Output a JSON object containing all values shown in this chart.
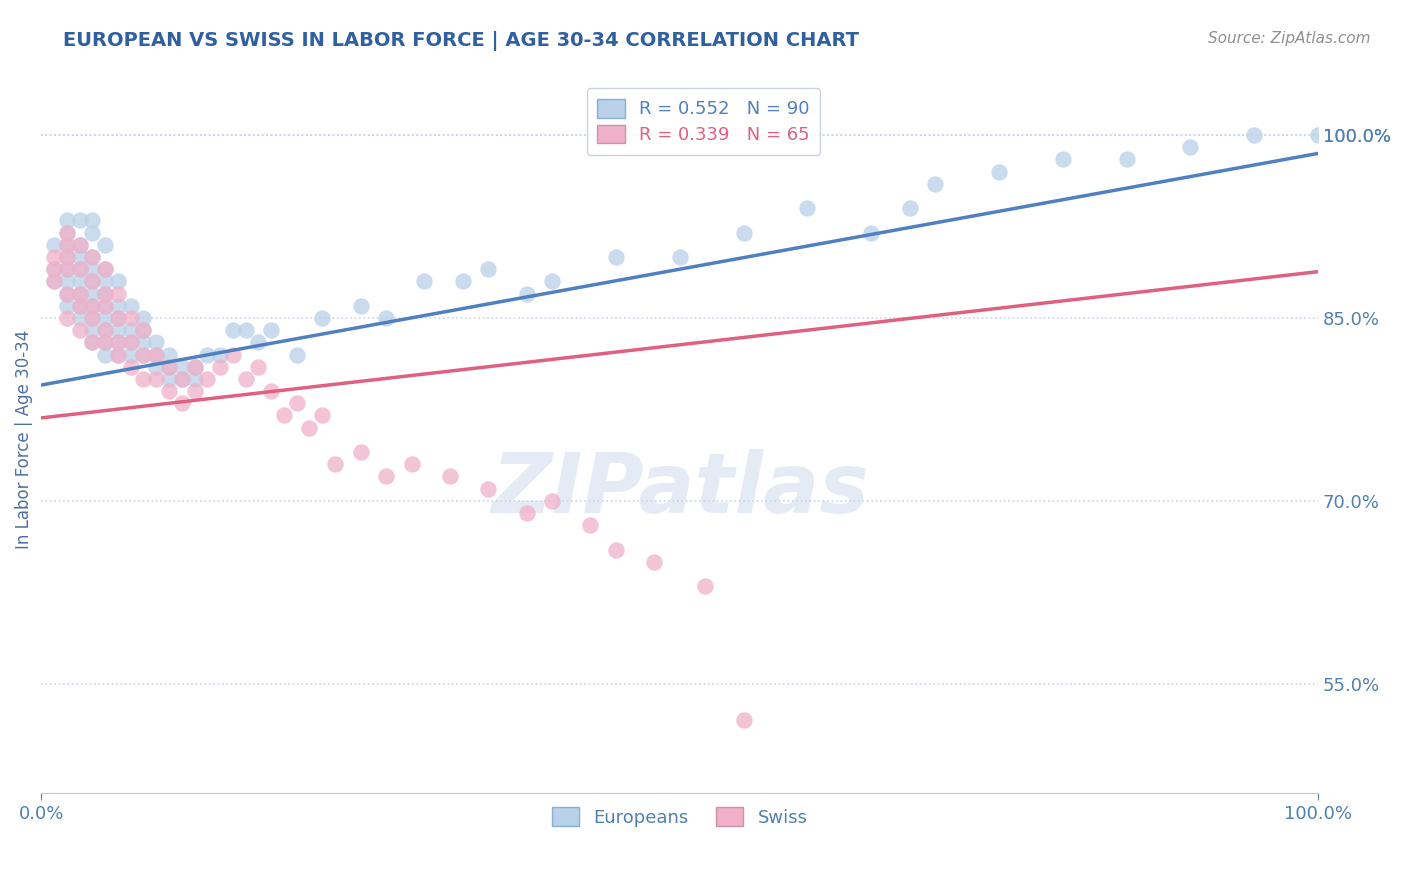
{
  "title": "EUROPEAN VS SWISS IN LABOR FORCE | AGE 30-34 CORRELATION CHART",
  "source": "Source: ZipAtlas.com",
  "xlabel": "",
  "ylabel": "In Labor Force | Age 30-34",
  "xlim": [
    0.0,
    1.0
  ],
  "ylim": [
    0.46,
    1.04
  ],
  "ytick_values": [
    0.55,
    0.7,
    0.85,
    1.0
  ],
  "ytick_labels": [
    "55.0%",
    "70.0%",
    "85.0%",
    "100.0%"
  ],
  "xtick_labels": [
    "0.0%",
    "100.0%"
  ],
  "watermark": "ZIPatlas",
  "legend_european": "Europeans",
  "legend_swiss": "Swiss",
  "european_color": "#b8d0e8",
  "swiss_color": "#f0b0c8",
  "european_line_color": "#5080c0",
  "swiss_line_color": "#e06080",
  "R_european": 0.552,
  "N_european": 90,
  "R_swiss": 0.339,
  "N_swiss": 65,
  "eu_intercept": 0.795,
  "eu_slope": 0.19,
  "sw_intercept": 0.768,
  "sw_slope": 0.12,
  "european_x": [
    0.01,
    0.01,
    0.01,
    0.02,
    0.02,
    0.02,
    0.02,
    0.02,
    0.02,
    0.02,
    0.02,
    0.03,
    0.03,
    0.03,
    0.03,
    0.03,
    0.03,
    0.03,
    0.03,
    0.04,
    0.04,
    0.04,
    0.04,
    0.04,
    0.04,
    0.04,
    0.04,
    0.04,
    0.04,
    0.05,
    0.05,
    0.05,
    0.05,
    0.05,
    0.05,
    0.05,
    0.05,
    0.05,
    0.06,
    0.06,
    0.06,
    0.06,
    0.06,
    0.06,
    0.07,
    0.07,
    0.07,
    0.07,
    0.08,
    0.08,
    0.08,
    0.08,
    0.09,
    0.09,
    0.09,
    0.1,
    0.1,
    0.1,
    0.11,
    0.11,
    0.12,
    0.12,
    0.13,
    0.14,
    0.15,
    0.16,
    0.17,
    0.18,
    0.2,
    0.22,
    0.25,
    0.27,
    0.3,
    0.33,
    0.35,
    0.38,
    0.4,
    0.45,
    0.5,
    0.55,
    0.6,
    0.65,
    0.68,
    0.7,
    0.75,
    0.8,
    0.85,
    0.9,
    0.95,
    1.0
  ],
  "european_y": [
    0.88,
    0.89,
    0.91,
    0.86,
    0.87,
    0.88,
    0.89,
    0.9,
    0.91,
    0.92,
    0.93,
    0.85,
    0.86,
    0.87,
    0.88,
    0.89,
    0.9,
    0.91,
    0.93,
    0.83,
    0.84,
    0.85,
    0.86,
    0.87,
    0.88,
    0.89,
    0.9,
    0.92,
    0.93,
    0.82,
    0.83,
    0.84,
    0.85,
    0.86,
    0.87,
    0.88,
    0.89,
    0.91,
    0.82,
    0.83,
    0.84,
    0.85,
    0.86,
    0.88,
    0.82,
    0.83,
    0.84,
    0.86,
    0.82,
    0.83,
    0.84,
    0.85,
    0.81,
    0.82,
    0.83,
    0.8,
    0.81,
    0.82,
    0.8,
    0.81,
    0.8,
    0.81,
    0.82,
    0.82,
    0.84,
    0.84,
    0.83,
    0.84,
    0.82,
    0.85,
    0.86,
    0.85,
    0.88,
    0.88,
    0.89,
    0.87,
    0.88,
    0.9,
    0.9,
    0.92,
    0.94,
    0.92,
    0.94,
    0.96,
    0.97,
    0.98,
    0.98,
    0.99,
    1.0,
    1.0
  ],
  "swiss_x": [
    0.01,
    0.01,
    0.01,
    0.02,
    0.02,
    0.02,
    0.02,
    0.02,
    0.02,
    0.03,
    0.03,
    0.03,
    0.03,
    0.03,
    0.04,
    0.04,
    0.04,
    0.04,
    0.04,
    0.05,
    0.05,
    0.05,
    0.05,
    0.05,
    0.06,
    0.06,
    0.06,
    0.06,
    0.07,
    0.07,
    0.07,
    0.08,
    0.08,
    0.08,
    0.09,
    0.09,
    0.1,
    0.1,
    0.11,
    0.11,
    0.12,
    0.12,
    0.13,
    0.14,
    0.15,
    0.16,
    0.17,
    0.18,
    0.19,
    0.2,
    0.21,
    0.22,
    0.23,
    0.25,
    0.27,
    0.29,
    0.32,
    0.35,
    0.38,
    0.4,
    0.43,
    0.45,
    0.48,
    0.52,
    0.55
  ],
  "swiss_y": [
    0.88,
    0.89,
    0.9,
    0.85,
    0.87,
    0.89,
    0.9,
    0.91,
    0.92,
    0.84,
    0.86,
    0.87,
    0.89,
    0.91,
    0.83,
    0.85,
    0.86,
    0.88,
    0.9,
    0.83,
    0.84,
    0.86,
    0.87,
    0.89,
    0.82,
    0.83,
    0.85,
    0.87,
    0.81,
    0.83,
    0.85,
    0.8,
    0.82,
    0.84,
    0.8,
    0.82,
    0.79,
    0.81,
    0.78,
    0.8,
    0.79,
    0.81,
    0.8,
    0.81,
    0.82,
    0.8,
    0.81,
    0.79,
    0.77,
    0.78,
    0.76,
    0.77,
    0.73,
    0.74,
    0.72,
    0.73,
    0.72,
    0.71,
    0.69,
    0.7,
    0.68,
    0.66,
    0.65,
    0.63,
    0.52
  ],
  "background_color": "#ffffff",
  "grid_color": "#c8d4e8",
  "title_color": "#3060a0",
  "axis_label_color": "#5070a0",
  "tick_color": "#5080b0",
  "source_color": "#909090"
}
